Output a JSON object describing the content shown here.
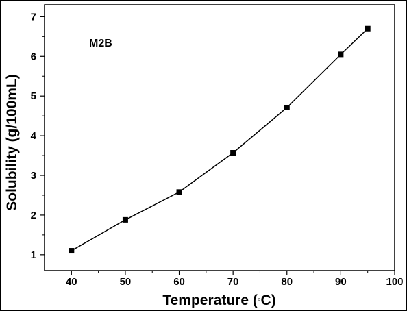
{
  "chart_data": {
    "type": "line",
    "title": "",
    "annotation": "M2B",
    "xlabel": "Temperature (",
    "xlabel_unit": "C)",
    "ylabel": "Solubility (g/100mL)",
    "xlim": [
      35,
      100
    ],
    "ylim": [
      0.6,
      7.3
    ],
    "x_ticks": [
      40,
      50,
      60,
      70,
      80,
      90,
      100
    ],
    "y_ticks": [
      1,
      2,
      3,
      4,
      5,
      6,
      7
    ],
    "grid": false,
    "legend": "none",
    "marker": "square",
    "color": "#000000",
    "series": [
      {
        "x": [
          40,
          50,
          60,
          70,
          80,
          90,
          95
        ],
        "y": [
          1.1,
          1.88,
          2.58,
          3.57,
          4.71,
          6.05,
          6.7
        ]
      }
    ]
  }
}
